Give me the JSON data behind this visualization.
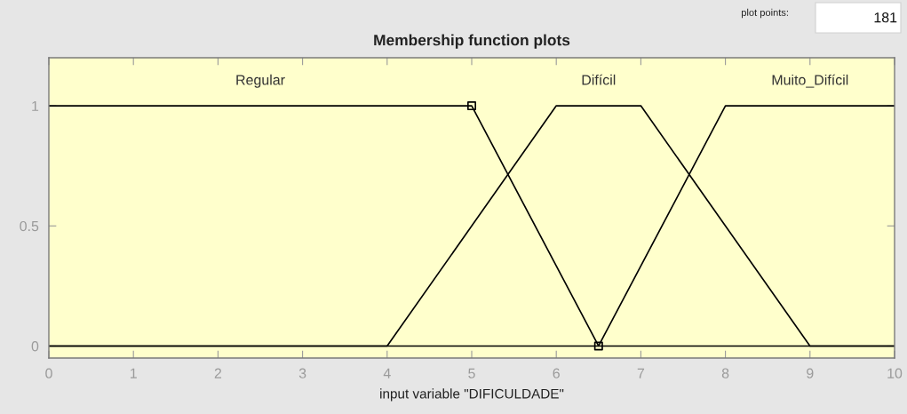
{
  "chart_data": {
    "type": "line",
    "title": "Membership function plots",
    "xlabel": "input variable \"DIFICULDADE\"",
    "xlim": [
      0,
      10
    ],
    "xticks": [
      0,
      1,
      2,
      3,
      4,
      5,
      6,
      7,
      8,
      9,
      10
    ],
    "ylim": [
      -0.05,
      1.2
    ],
    "yticks": [
      0,
      0.5,
      1
    ],
    "grid": false,
    "line_style": "solid",
    "series": [
      {
        "name": "Regular",
        "color": "#000000",
        "x": [
          0,
          5,
          6.5,
          10
        ],
        "values": [
          1,
          1,
          0,
          0
        ]
      },
      {
        "name": "Difícil",
        "color": "#000000",
        "x": [
          0,
          4,
          6,
          7,
          9,
          10
        ],
        "values": [
          0,
          0,
          1,
          1,
          0,
          0
        ]
      },
      {
        "name": "Muito_Difícil",
        "color": "#000000",
        "x": [
          0,
          6.5,
          8,
          10
        ],
        "values": [
          0,
          0,
          1,
          1
        ]
      },
      {
        "type": "scatter",
        "marker": "square",
        "color": "#000000",
        "x": [
          5,
          6.5
        ],
        "values": [
          1,
          0
        ]
      }
    ],
    "annotations": [
      "plot points:",
      "181"
    ]
  }
}
